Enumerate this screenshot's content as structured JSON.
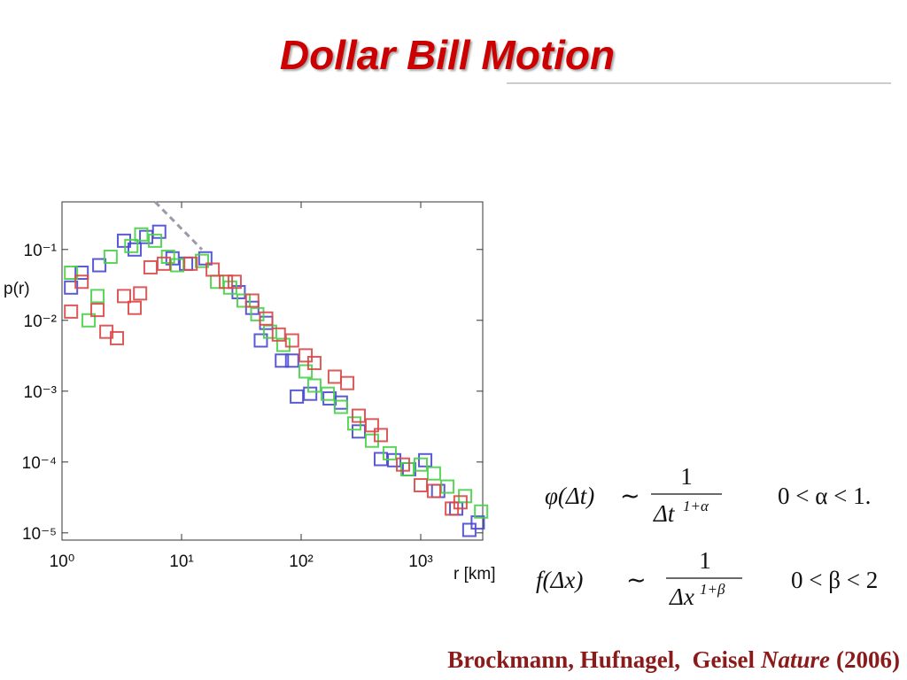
{
  "chart_data": {
    "type": "scatter",
    "title": "Dollar Bill Motion",
    "x_label": "r [km]",
    "y_label": "p(r)",
    "log_x": true,
    "log_y": true,
    "grid": false,
    "xlim": [
      1,
      3300
    ],
    "ylim": [
      7.9e-06,
      0.47
    ],
    "xticks": [
      {
        "value": 1,
        "label": "10⁰"
      },
      {
        "value": 10,
        "label": "10¹"
      },
      {
        "value": 100,
        "label": "10²"
      },
      {
        "value": 1000,
        "label": "10³"
      }
    ],
    "yticks": [
      {
        "value": 0.1,
        "label": "10⁻¹"
      },
      {
        "value": 0.01,
        "label": "10⁻²"
      },
      {
        "value": 0.001,
        "label": "10⁻³"
      },
      {
        "value": 0.0001,
        "label": "10⁻⁴"
      },
      {
        "value": 1e-05,
        "label": "10⁻⁵"
      }
    ],
    "reference_line": {
      "color": "#9a9aa8",
      "dashed": true,
      "x": [
        6.0,
        14.8
      ],
      "values": [
        0.47,
        0.1
      ]
    },
    "series": [
      {
        "color": "#4848d0",
        "x": [
          1.19,
          1.46,
          2.05,
          3.3,
          4.05,
          5.06,
          6.5,
          8.4,
          10.9,
          15.8,
          30,
          39,
          46,
          51,
          69,
          84,
          92,
          119,
          173,
          215,
          303,
          464,
          600,
          800,
          1090,
          1400,
          1980,
          2550,
          3000
        ],
        "values": [
          0.029,
          0.047,
          0.06,
          0.133,
          0.1,
          0.15,
          0.178,
          0.075,
          0.063,
          0.075,
          0.025,
          0.015,
          0.0052,
          0.0092,
          0.0027,
          0.0027,
          0.00084,
          0.00092,
          0.00079,
          0.00069,
          0.00027,
          0.00011,
          0.000106,
          7.9e-05,
          0.000106,
          3.9e-05,
          2.2e-05,
          1.1e-05,
          1.4e-05
        ]
      },
      {
        "color": "#48d048",
        "x": [
          1.19,
          1.67,
          1.98,
          2.55,
          3.8,
          4.6,
          6.0,
          7.7,
          9.2,
          14.8,
          19.8,
          25.5,
          33,
          43,
          55,
          71,
          109,
          129,
          167,
          215,
          278,
          391,
          550,
          774,
          1000,
          1290,
          1670,
          2350,
          3200
        ],
        "values": [
          0.047,
          0.01,
          0.022,
          0.079,
          0.112,
          0.163,
          0.133,
          0.079,
          0.06,
          0.069,
          0.035,
          0.029,
          0.019,
          0.0122,
          0.0069,
          0.0045,
          0.0019,
          0.0012,
          0.00092,
          0.0006,
          0.00035,
          0.0002,
          0.000133,
          7.9e-05,
          9.2e-05,
          6.9e-05,
          4.5e-05,
          3.3e-05,
          2e-05
        ]
      },
      {
        "color": "#d84848",
        "x": [
          1.19,
          1.46,
          1.98,
          2.35,
          2.88,
          3.3,
          4.05,
          4.5,
          5.5,
          7.1,
          11.9,
          18.2,
          23.5,
          27.8,
          39,
          51,
          65,
          84,
          109,
          129,
          191,
          243,
          303,
          391,
          464,
          711,
          1000,
          1290,
          1820,
          2150
        ],
        "values": [
          0.0133,
          0.035,
          0.014,
          0.0069,
          0.0056,
          0.022,
          0.015,
          0.024,
          0.056,
          0.063,
          0.063,
          0.052,
          0.035,
          0.035,
          0.019,
          0.0106,
          0.0063,
          0.0052,
          0.0032,
          0.0025,
          0.0016,
          0.0013,
          0.00045,
          0.00033,
          0.00024,
          9.2e-05,
          4.7e-05,
          3.9e-05,
          2.2e-05,
          2.7e-05
        ]
      }
    ]
  },
  "formulas": [
    {
      "lhs": "φ(Δt)",
      "relation": "∼",
      "numerator": "1",
      "denominator": "Δt",
      "exponent": "1+α",
      "condition": "0 < α < 1."
    },
    {
      "lhs": "f(Δx)",
      "relation": "∼",
      "numerator": "1",
      "denominator": "Δx",
      "exponent": "1+β",
      "condition": "0 < β < 2"
    }
  ],
  "citation": {
    "authors": "Brockmann, Hufnagel,  Geisel",
    "journal": "Nature",
    "year": "(2006)"
  }
}
